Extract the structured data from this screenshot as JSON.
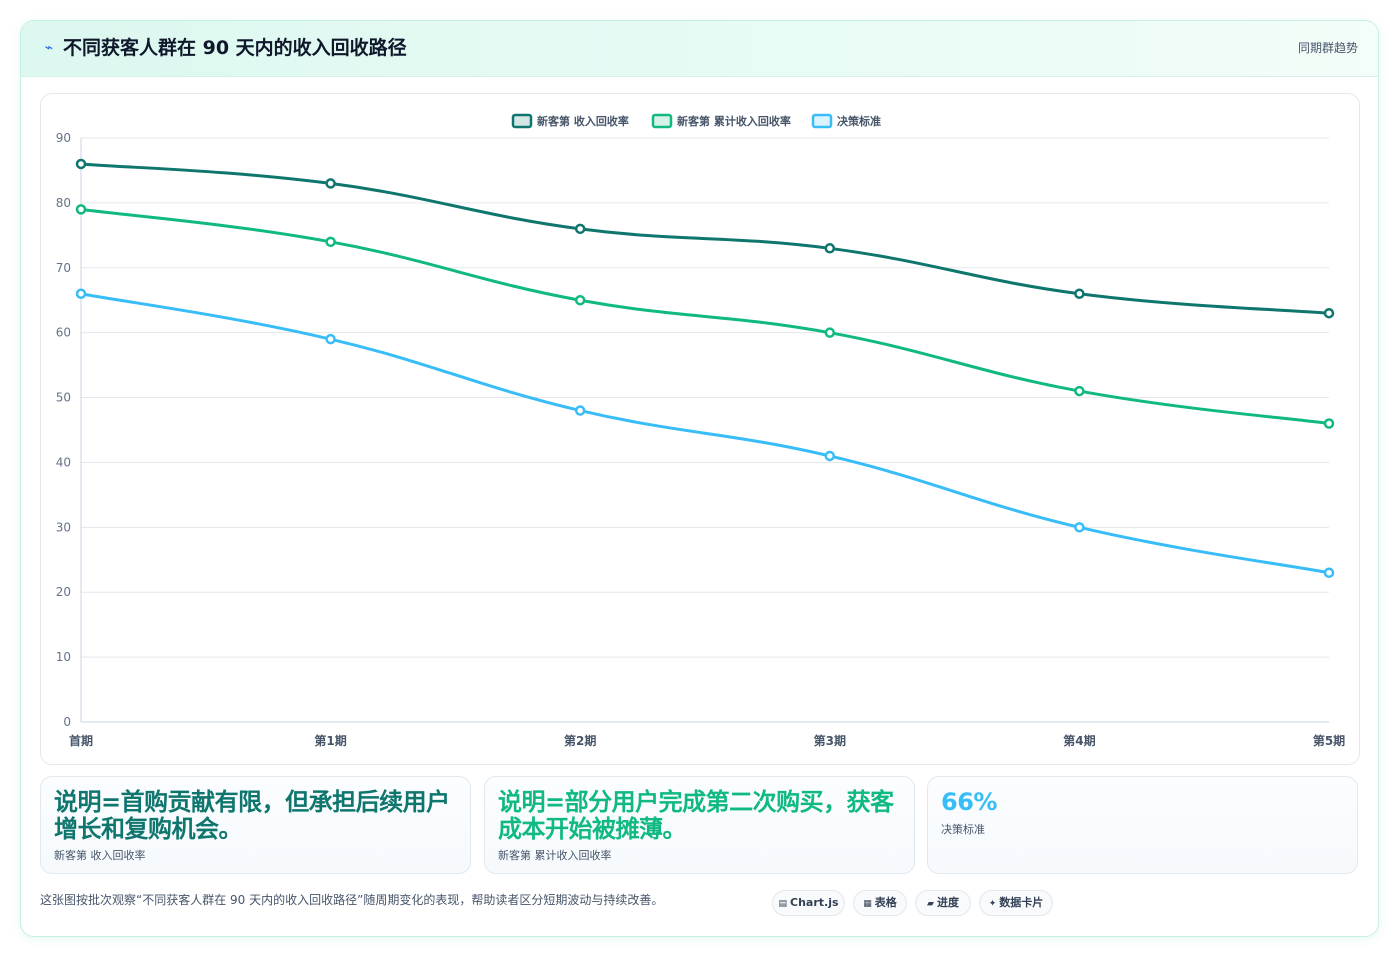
{
  "header": {
    "icon": "pulse-icon",
    "title": "不同获客人群在 90 天内的收入回收路径",
    "link_label": "同期群趋势"
  },
  "chart_data": {
    "type": "line",
    "categories": [
      "首期",
      "第1期",
      "第2期",
      "第3期",
      "第4期",
      "第5期"
    ],
    "ylim": [
      0,
      90
    ],
    "yticks": [
      0,
      10,
      20,
      30,
      40,
      50,
      60,
      70,
      80,
      90
    ],
    "grid": true,
    "legend_position": "top",
    "series": [
      {
        "name": "新客第 收入回收率",
        "color": "#0f766e",
        "values": [
          86,
          83,
          76,
          73,
          66,
          63
        ]
      },
      {
        "name": "新客第 累计收入回收率",
        "color": "#10b981",
        "values": [
          79,
          74,
          65,
          60,
          51,
          46
        ]
      },
      {
        "name": "决策标准",
        "color": "#38bdf8",
        "values": [
          66,
          59,
          48,
          41,
          30,
          23
        ]
      }
    ]
  },
  "stats": [
    {
      "value": "说明=首购贡献有限，但承担后续用户增长和复购机会。",
      "label": "新客第 收入回收率",
      "color": "#0f766e"
    },
    {
      "value": "说明=部分用户完成第二次购买，获客成本开始被摊薄。",
      "label": "新客第 累计收入回收率",
      "color": "#10b981"
    },
    {
      "value": "66%",
      "label": "决策标准",
      "color": "#38bdf8"
    }
  ],
  "footer": {
    "note": "这张图按批次观察“不同获客人群在 90 天内的收入回收路径”随周期变化的表现，帮助读者区分短期波动与持续改善。",
    "chips": [
      {
        "icon": "chart-icon",
        "glyph": "▤",
        "label": "Chart.js"
      },
      {
        "icon": "table-icon",
        "glyph": "▦",
        "label": "表格"
      },
      {
        "icon": "progress-icon",
        "glyph": "▰",
        "label": "进度"
      },
      {
        "icon": "sparkle-icon",
        "glyph": "✦",
        "label": "数据卡片"
      }
    ]
  }
}
